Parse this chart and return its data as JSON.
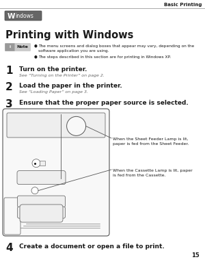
{
  "bg_color": "#ffffff",
  "header_text": "Basic Printing",
  "windows_label": "Windows",
  "title_text": "Printing with Windows",
  "note_label": "Note",
  "note_bullet1": "The menu screens and dialog boxes that appear may vary, depending on the\nsoftware application you are using.",
  "note_bullet2": "The steps described in this section are for printing in Windows XP.",
  "step1_num": "1",
  "step1_main": "Turn on the printer.",
  "step1_sub": "See “Turning on the Printer” on page 2.",
  "step2_num": "2",
  "step2_main": "Load the paper in the printer.",
  "step2_sub": "See “Loading Paper” on page 3.",
  "step3_num": "3",
  "step3_main": "Ensure that the proper paper source is selected.",
  "callout1": "When the Sheet Feeder Lamp is lit,\npaper is fed from the Sheet Feeder.",
  "callout2": "When the Cassette Lamp is lit, paper\nis fed from the Cassette.",
  "step4_num": "4",
  "step4_main": "Create a document or open a file to print.",
  "page_num": "15",
  "text_color": "#1a1a1a",
  "gray_color": "#666666",
  "badge_bg": "#666666",
  "note_badge_bg": "#888888",
  "line_color": "#aaaaaa",
  "diagram_edge": "#555555",
  "diagram_fill": "#f8f8f8",
  "diagram_fill2": "#eeeeee"
}
